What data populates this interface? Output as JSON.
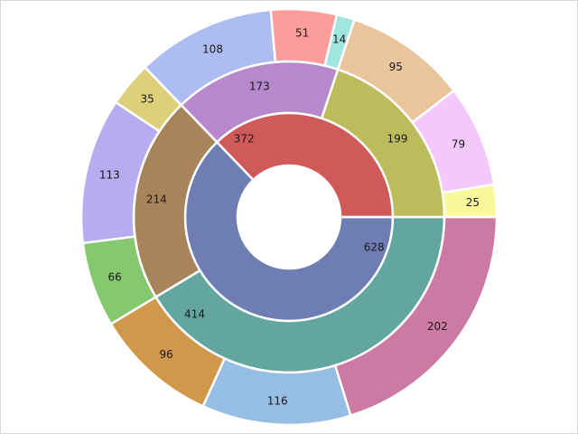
{
  "chart_data": {
    "type": "sunburst",
    "start_angle_deg": 0,
    "direction": "clockwise",
    "rings": [
      {
        "level": 1,
        "segments": [
          {
            "value": 628,
            "color": "#6e7db3"
          },
          {
            "value": 372,
            "color": "#d05a5a"
          }
        ]
      },
      {
        "level": 2,
        "segments": [
          {
            "value": 414,
            "parent": 0,
            "color": "#63a6a0"
          },
          {
            "value": 214,
            "parent": 0,
            "color": "#a8845c"
          },
          {
            "value": 173,
            "parent": 1,
            "color": "#b888cc"
          },
          {
            "value": 199,
            "parent": 1,
            "color": "#bcbc5c"
          }
        ]
      },
      {
        "level": 3,
        "segments": [
          {
            "value": 202,
            "parent": 0,
            "color": "#cc7aa3"
          },
          {
            "value": 116,
            "parent": 0,
            "color": "#96bde3"
          },
          {
            "value": 96,
            "parent": 0,
            "color": "#d1974b"
          },
          {
            "value": 66,
            "parent": 1,
            "color": "#84c96f"
          },
          {
            "value": 113,
            "parent": 1,
            "color": "#b5adef"
          },
          {
            "value": 35,
            "parent": 1,
            "color": "#ded07a"
          },
          {
            "value": 108,
            "parent": 2,
            "color": "#adbdf1"
          },
          {
            "value": 51,
            "parent": 2,
            "color": "#fc9d9b"
          },
          {
            "value": 14,
            "parent": 2,
            "color": "#a1e5e0"
          },
          {
            "value": 95,
            "parent": 3,
            "color": "#eac59b"
          },
          {
            "value": 79,
            "parent": 3,
            "color": "#f4c8fc"
          },
          {
            "value": 25,
            "parent": 3,
            "color": "#f9f99b"
          }
        ]
      }
    ]
  }
}
